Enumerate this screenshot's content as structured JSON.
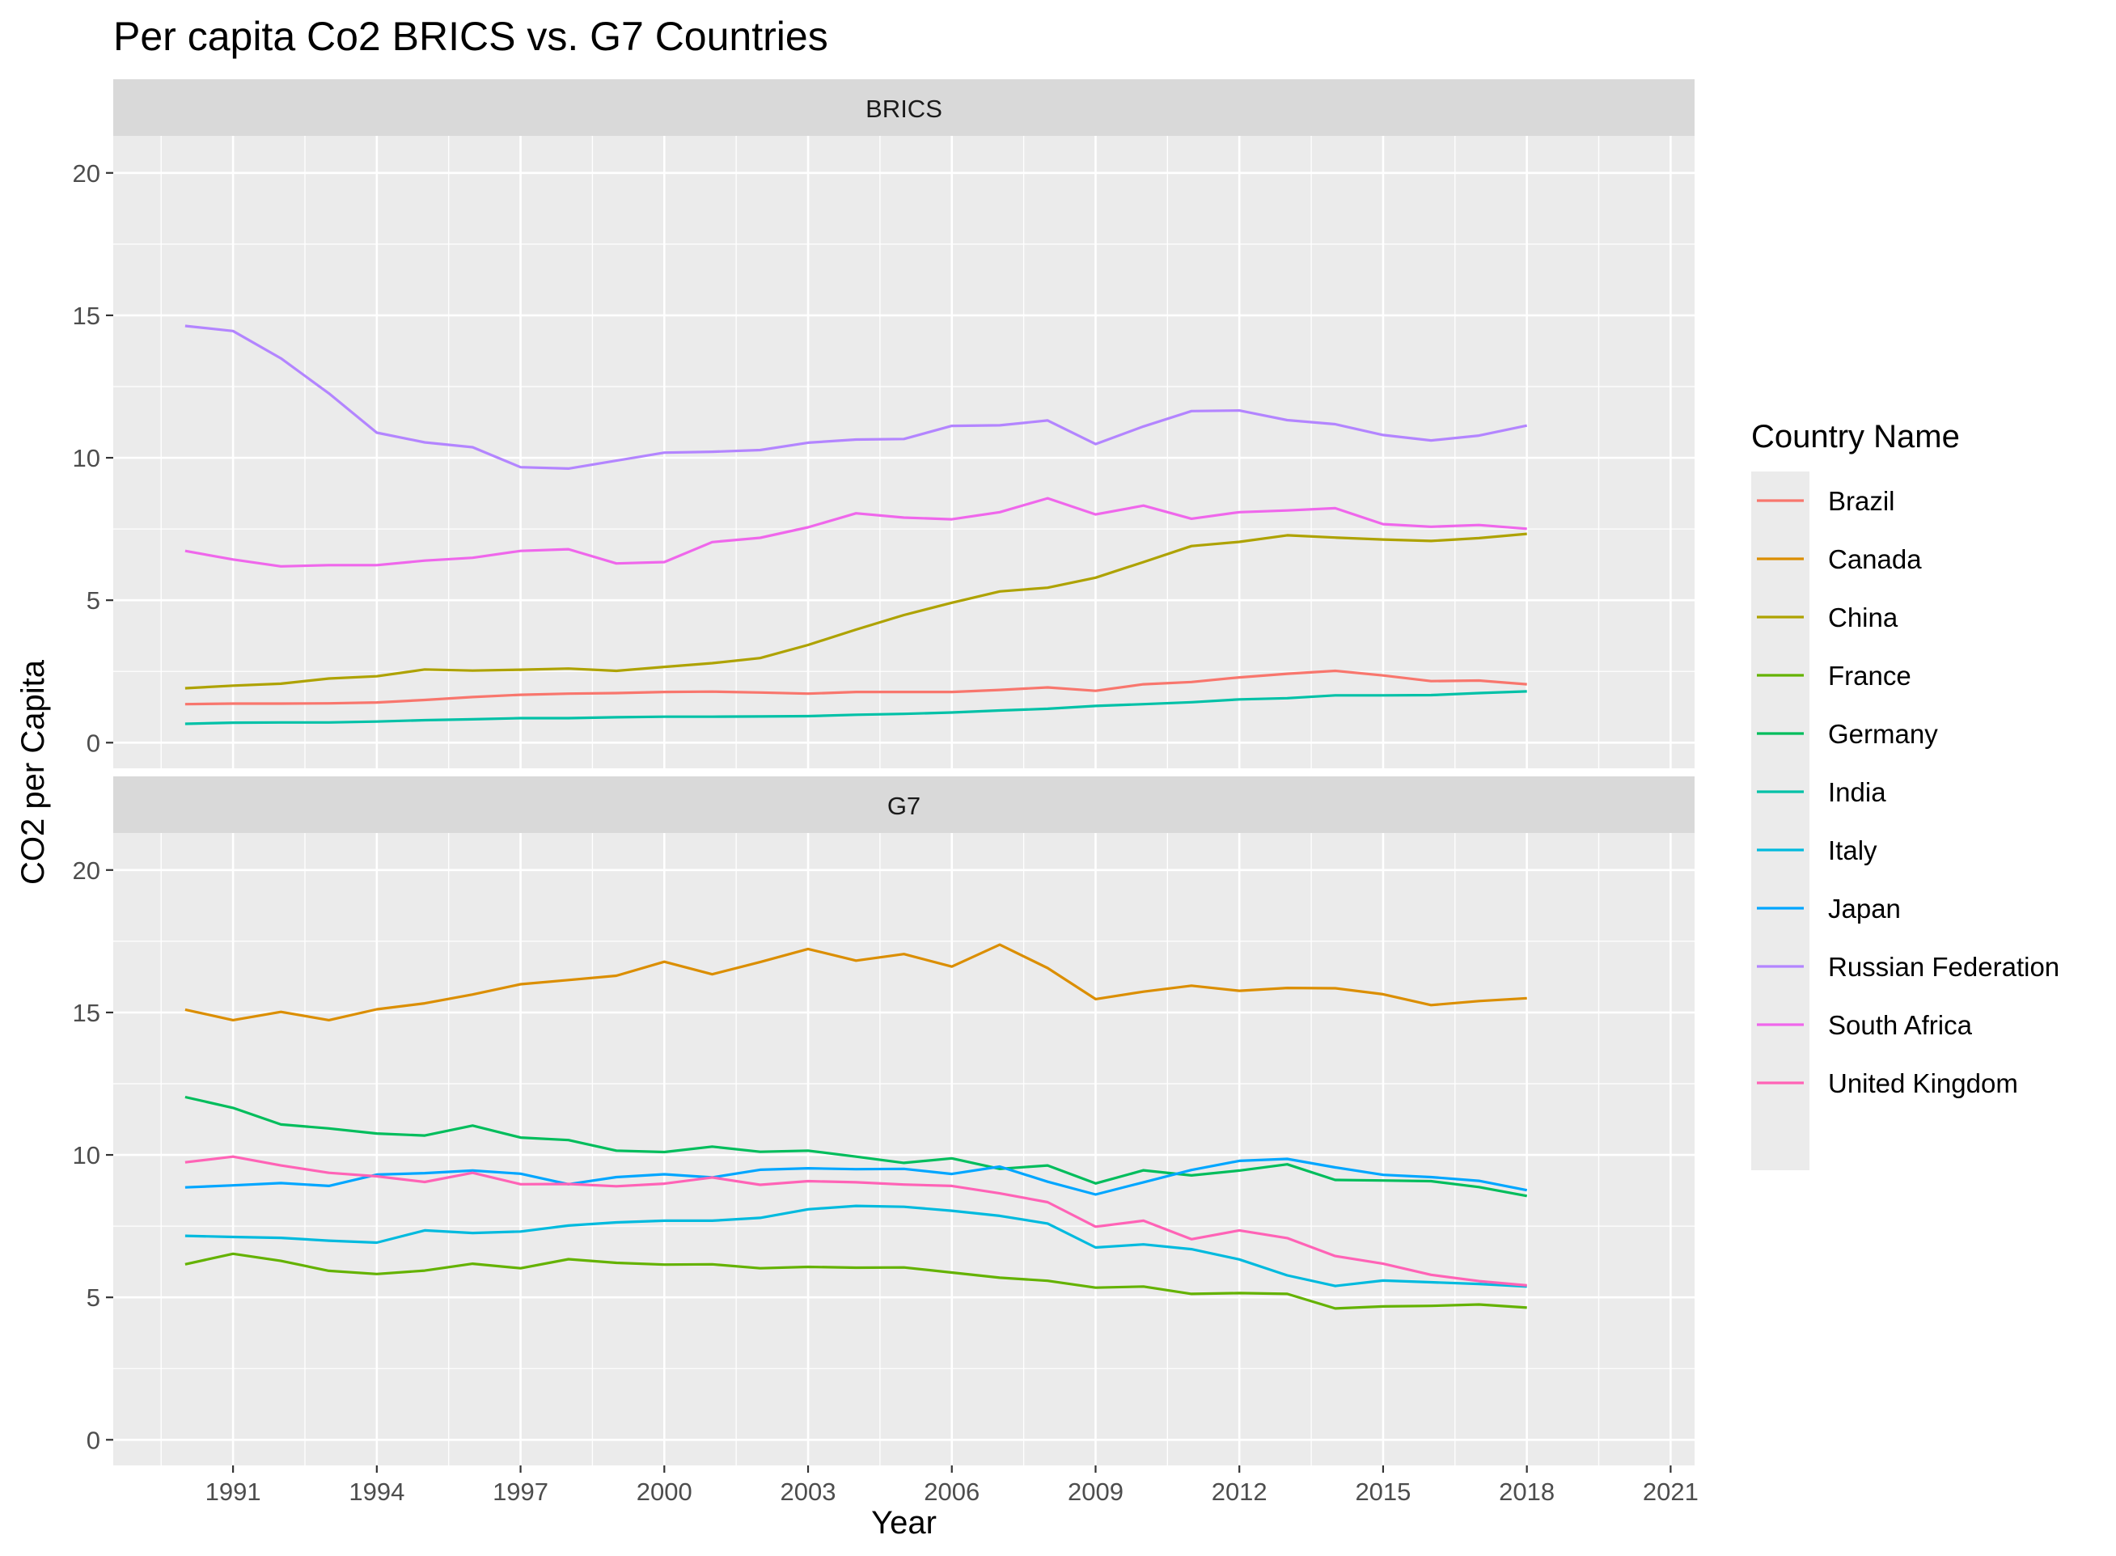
{
  "chart_data": {
    "type": "line",
    "title": "Per capita Co2 BRICS vs. G7 Countries",
    "xlabel": "Year",
    "ylabel": "CO2 per Capita",
    "xlim": [
      1988.5,
      2021.5
    ],
    "ylim": [
      -0.9,
      21.3
    ],
    "x_ticks": [
      1991,
      1994,
      1997,
      2000,
      2003,
      2006,
      2009,
      2012,
      2015,
      2018,
      2021
    ],
    "y_ticks": [
      0,
      5,
      10,
      15,
      20
    ],
    "grid": true,
    "facets": [
      "BRICS",
      "G7"
    ],
    "legend": {
      "title": "Country Name",
      "position": "right"
    },
    "years": [
      1990,
      1991,
      1992,
      1993,
      1994,
      1995,
      1996,
      1997,
      1998,
      1999,
      2000,
      2001,
      2002,
      2003,
      2004,
      2005,
      2006,
      2007,
      2008,
      2009,
      2010,
      2011,
      2012,
      2013,
      2014,
      2015,
      2016,
      2017,
      2018
    ],
    "series": [
      {
        "name": "Brazil",
        "facet": "BRICS",
        "color": "#F8766D",
        "values": [
          1.35,
          1.37,
          1.37,
          1.38,
          1.41,
          1.5,
          1.6,
          1.68,
          1.72,
          1.74,
          1.78,
          1.79,
          1.76,
          1.72,
          1.78,
          1.78,
          1.78,
          1.85,
          1.94,
          1.82,
          2.05,
          2.13,
          2.29,
          2.42,
          2.52,
          2.36,
          2.16,
          2.18,
          2.05
        ]
      },
      {
        "name": "Canada",
        "facet": "G7",
        "color": "#DB8E00",
        "values": [
          15.1,
          14.73,
          15.02,
          14.73,
          15.11,
          15.32,
          15.63,
          15.99,
          16.14,
          16.29,
          16.78,
          16.34,
          16.77,
          17.23,
          16.82,
          17.05,
          16.61,
          17.38,
          16.56,
          15.47,
          15.73,
          15.94,
          15.76,
          15.86,
          15.85,
          15.64,
          15.26,
          15.4,
          15.5
        ]
      },
      {
        "name": "China",
        "facet": "BRICS",
        "color": "#AEA200",
        "values": [
          1.91,
          2.0,
          2.07,
          2.25,
          2.33,
          2.57,
          2.53,
          2.56,
          2.6,
          2.52,
          2.66,
          2.79,
          2.97,
          3.43,
          3.97,
          4.48,
          4.91,
          5.31,
          5.44,
          5.79,
          6.34,
          6.9,
          7.05,
          7.28,
          7.2,
          7.13,
          7.08,
          7.18,
          7.33
        ]
      },
      {
        "name": "France",
        "facet": "G7",
        "color": "#64B200",
        "values": [
          6.16,
          6.53,
          6.28,
          5.93,
          5.82,
          5.94,
          6.18,
          6.02,
          6.34,
          6.21,
          6.15,
          6.16,
          6.02,
          6.07,
          6.04,
          6.05,
          5.87,
          5.69,
          5.58,
          5.34,
          5.38,
          5.12,
          5.15,
          5.12,
          4.61,
          4.68,
          4.7,
          4.75,
          4.64
        ]
      },
      {
        "name": "Germany",
        "facet": "G7",
        "color": "#00BD5C",
        "values": [
          12.03,
          11.65,
          11.07,
          10.93,
          10.75,
          10.68,
          11.03,
          10.61,
          10.52,
          10.15,
          10.1,
          10.29,
          10.11,
          10.15,
          9.94,
          9.72,
          9.88,
          9.51,
          9.63,
          9.0,
          9.46,
          9.28,
          9.45,
          9.67,
          9.12,
          9.1,
          9.08,
          8.87,
          8.56
        ]
      },
      {
        "name": "India",
        "facet": "BRICS",
        "color": "#00C1A7",
        "values": [
          0.66,
          0.7,
          0.71,
          0.71,
          0.74,
          0.79,
          0.82,
          0.86,
          0.86,
          0.89,
          0.91,
          0.91,
          0.92,
          0.93,
          0.98,
          1.01,
          1.06,
          1.13,
          1.19,
          1.29,
          1.35,
          1.42,
          1.52,
          1.56,
          1.66,
          1.66,
          1.67,
          1.74,
          1.8
        ]
      },
      {
        "name": "Italy",
        "facet": "G7",
        "color": "#00BADE",
        "values": [
          7.16,
          7.12,
          7.09,
          6.99,
          6.92,
          7.35,
          7.26,
          7.31,
          7.52,
          7.63,
          7.69,
          7.69,
          7.79,
          8.09,
          8.21,
          8.18,
          8.04,
          7.86,
          7.59,
          6.75,
          6.86,
          6.69,
          6.33,
          5.77,
          5.4,
          5.59,
          5.53,
          5.47,
          5.38
        ]
      },
      {
        "name": "Japan",
        "facet": "G7",
        "color": "#00A6FF",
        "values": [
          8.86,
          8.93,
          9.01,
          8.91,
          9.31,
          9.36,
          9.45,
          9.34,
          8.97,
          9.22,
          9.32,
          9.21,
          9.48,
          9.53,
          9.5,
          9.51,
          9.33,
          9.59,
          9.06,
          8.61,
          9.04,
          9.47,
          9.79,
          9.86,
          9.56,
          9.3,
          9.22,
          9.09,
          8.76
        ]
      },
      {
        "name": "Russian Federation",
        "facet": "BRICS",
        "color": "#B385FF",
        "values": [
          14.63,
          14.45,
          13.49,
          12.26,
          10.88,
          10.54,
          10.37,
          9.67,
          9.62,
          9.9,
          10.18,
          10.21,
          10.27,
          10.53,
          10.64,
          10.66,
          11.12,
          11.14,
          11.31,
          10.48,
          11.1,
          11.64,
          11.66,
          11.32,
          11.18,
          10.8,
          10.61,
          10.78,
          11.13
        ]
      },
      {
        "name": "South Africa",
        "facet": "BRICS",
        "color": "#EF67EB",
        "values": [
          6.73,
          6.43,
          6.19,
          6.23,
          6.23,
          6.39,
          6.49,
          6.73,
          6.79,
          6.29,
          6.34,
          7.04,
          7.19,
          7.56,
          8.05,
          7.9,
          7.84,
          8.09,
          8.58,
          8.01,
          8.32,
          7.86,
          8.09,
          8.15,
          8.23,
          7.67,
          7.58,
          7.64,
          7.51
        ]
      },
      {
        "name": "United Kingdom",
        "facet": "G7",
        "color": "#FF63B6",
        "values": [
          9.74,
          9.94,
          9.63,
          9.37,
          9.25,
          9.05,
          9.37,
          8.97,
          8.98,
          8.9,
          8.99,
          9.21,
          8.95,
          9.08,
          9.04,
          8.96,
          8.91,
          8.65,
          8.34,
          7.48,
          7.69,
          7.04,
          7.35,
          7.08,
          6.45,
          6.18,
          5.79,
          5.57,
          5.42
        ]
      }
    ]
  }
}
